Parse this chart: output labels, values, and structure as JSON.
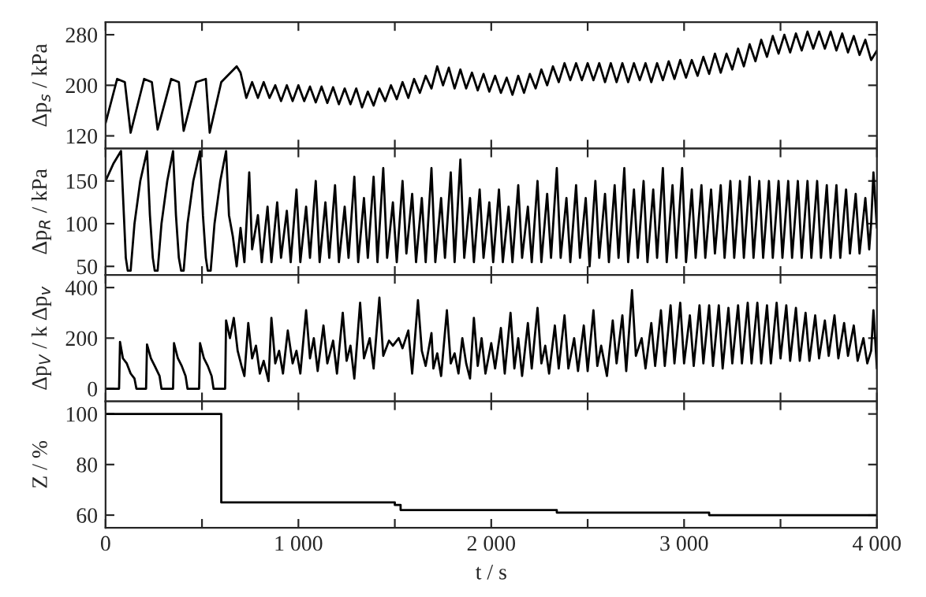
{
  "chart_data": [
    {
      "type": "line",
      "ylabel": "Δp$_{s}$ / kPa",
      "tick_labels": "y",
      "grid": false,
      "xlim": [
        0,
        4000
      ],
      "ylim": [
        100,
        300
      ],
      "yticks": [
        120,
        200,
        280
      ],
      "xticks": [
        0,
        500,
        1000,
        1500,
        2000,
        2500,
        3000,
        3500,
        4000
      ],
      "series": [
        {
          "color": "#000000",
          "x": [
            0,
            60,
            100,
            130,
            200,
            240,
            270,
            340,
            380,
            405,
            470,
            520,
            540,
            600,
            680,
            700,
            730,
            760,
            790,
            820,
            850,
            880,
            910,
            940,
            970,
            1000,
            1030,
            1060,
            1090,
            1120,
            1150,
            1180,
            1210,
            1240,
            1270,
            1300,
            1330,
            1360,
            1390,
            1420,
            1450,
            1480,
            1510,
            1540,
            1570,
            1600,
            1630,
            1660,
            1690,
            1720,
            1750,
            1780,
            1810,
            1840,
            1870,
            1900,
            1930,
            1960,
            1990,
            2020,
            2050,
            2080,
            2110,
            2140,
            2170,
            2200,
            2230,
            2260,
            2290,
            2320,
            2350,
            2380,
            2410,
            2440,
            2470,
            2500,
            2530,
            2560,
            2590,
            2620,
            2650,
            2680,
            2710,
            2740,
            2770,
            2800,
            2830,
            2860,
            2890,
            2920,
            2950,
            2980,
            3010,
            3040,
            3070,
            3100,
            3130,
            3160,
            3190,
            3220,
            3250,
            3280,
            3310,
            3340,
            3370,
            3400,
            3430,
            3460,
            3490,
            3520,
            3550,
            3580,
            3610,
            3640,
            3670,
            3700,
            3730,
            3760,
            3790,
            3820,
            3850,
            3880,
            3910,
            3940,
            3970,
            4000
          ],
          "values": [
            140,
            210,
            205,
            125,
            210,
            205,
            130,
            210,
            205,
            128,
            205,
            210,
            125,
            205,
            230,
            220,
            180,
            205,
            180,
            205,
            180,
            200,
            175,
            200,
            175,
            200,
            175,
            198,
            173,
            198,
            172,
            197,
            170,
            195,
            170,
            195,
            165,
            190,
            168,
            195,
            175,
            200,
            178,
            205,
            180,
            210,
            188,
            215,
            195,
            230,
            200,
            228,
            195,
            225,
            195,
            220,
            192,
            218,
            190,
            215,
            188,
            212,
            185,
            215,
            188,
            218,
            195,
            225,
            200,
            230,
            205,
            235,
            208,
            235,
            208,
            235,
            208,
            235,
            205,
            235,
            205,
            235,
            205,
            235,
            208,
            235,
            205,
            235,
            208,
            238,
            210,
            240,
            212,
            240,
            215,
            245,
            218,
            250,
            220,
            250,
            225,
            258,
            230,
            265,
            238,
            272,
            245,
            278,
            250,
            280,
            252,
            282,
            255,
            285,
            258,
            285,
            258,
            285,
            255,
            282,
            252,
            278,
            248,
            272,
            240,
            255
          ]
        }
      ]
    },
    {
      "type": "line",
      "ylabel": "Δp$_{R}$ / kPa",
      "tick_labels": "y",
      "grid": false,
      "xlim": [
        0,
        4000
      ],
      "ylim": [
        40,
        188
      ],
      "yticks": [
        50,
        100,
        150
      ],
      "xticks": [
        0,
        500,
        1000,
        1500,
        2000,
        2500,
        3000,
        3500,
        4000
      ],
      "series": [
        {
          "color": "#000000",
          "x": [
            0,
            40,
            80,
            95,
            105,
            115,
            130,
            150,
            180,
            215,
            230,
            245,
            255,
            270,
            290,
            320,
            350,
            365,
            380,
            392,
            405,
            425,
            455,
            490,
            505,
            520,
            530,
            545,
            565,
            595,
            625,
            640,
            660,
            680,
            700,
            720,
            745,
            760,
            790,
            810,
            840,
            860,
            890,
            910,
            940,
            960,
            990,
            1010,
            1040,
            1060,
            1090,
            1110,
            1140,
            1160,
            1190,
            1210,
            1240,
            1260,
            1290,
            1310,
            1340,
            1360,
            1390,
            1410,
            1440,
            1460,
            1490,
            1510,
            1540,
            1560,
            1590,
            1610,
            1640,
            1660,
            1690,
            1710,
            1740,
            1760,
            1790,
            1810,
            1840,
            1860,
            1890,
            1910,
            1940,
            1960,
            1990,
            2010,
            2040,
            2060,
            2090,
            2110,
            2140,
            2160,
            2190,
            2210,
            2240,
            2260,
            2290,
            2310,
            2340,
            2360,
            2390,
            2410,
            2440,
            2460,
            2490,
            2510,
            2540,
            2560,
            2590,
            2610,
            2640,
            2660,
            2690,
            2710,
            2740,
            2760,
            2790,
            2810,
            2840,
            2860,
            2890,
            2910,
            2940,
            2960,
            2990,
            3010,
            3040,
            3060,
            3090,
            3110,
            3140,
            3160,
            3190,
            3210,
            3240,
            3260,
            3290,
            3310,
            3340,
            3360,
            3390,
            3410,
            3440,
            3460,
            3490,
            3510,
            3540,
            3560,
            3590,
            3610,
            3640,
            3660,
            3690,
            3710,
            3740,
            3760,
            3790,
            3810,
            3840,
            3860,
            3890,
            3910,
            3940,
            3960,
            3970,
            3982,
            4000
          ],
          "values": [
            150,
            170,
            185,
            110,
            60,
            45,
            45,
            100,
            150,
            185,
            110,
            60,
            45,
            45,
            100,
            150,
            185,
            110,
            60,
            45,
            45,
            100,
            150,
            185,
            110,
            60,
            45,
            45,
            100,
            150,
            185,
            110,
            85,
            50,
            95,
            55,
            160,
            70,
            110,
            55,
            120,
            55,
            125,
            60,
            115,
            55,
            140,
            55,
            120,
            60,
            150,
            55,
            125,
            60,
            145,
            55,
            120,
            60,
            155,
            55,
            130,
            60,
            155,
            55,
            165,
            60,
            125,
            55,
            150,
            65,
            135,
            55,
            130,
            55,
            165,
            55,
            130,
            60,
            160,
            55,
            175,
            60,
            130,
            55,
            140,
            60,
            125,
            55,
            140,
            55,
            120,
            55,
            145,
            60,
            120,
            55,
            150,
            55,
            135,
            60,
            165,
            60,
            130,
            55,
            145,
            60,
            130,
            50,
            150,
            60,
            135,
            55,
            145,
            60,
            165,
            55,
            140,
            60,
            150,
            55,
            140,
            60,
            165,
            55,
            145,
            60,
            165,
            55,
            140,
            60,
            145,
            60,
            140,
            65,
            145,
            60,
            150,
            60,
            150,
            60,
            155,
            60,
            150,
            60,
            150,
            60,
            150,
            60,
            150,
            60,
            150,
            60,
            150,
            60,
            150,
            60,
            145,
            60,
            145,
            60,
            140,
            65,
            135,
            65,
            130,
            70,
            100,
            160,
            95
          ]
        }
      ]
    },
    {
      "type": "line",
      "ylabel": "Δp$_{V}$ / k Δp$_{v}$",
      "tick_labels": "y",
      "grid": false,
      "xlim": [
        0,
        4000
      ],
      "ylim": [
        -50,
        450
      ],
      "yticks": [
        0,
        200,
        400
      ],
      "xticks": [
        0,
        500,
        1000,
        1500,
        2000,
        2500,
        3000,
        3500,
        4000
      ],
      "series": [
        {
          "color": "#000000",
          "x": [
            0,
            70,
            75,
            90,
            110,
            130,
            150,
            160,
            210,
            215,
            235,
            255,
            280,
            290,
            350,
            355,
            375,
            395,
            415,
            425,
            485,
            490,
            510,
            530,
            550,
            560,
            620,
            625,
            645,
            665,
            685,
            705,
            720,
            740,
            760,
            780,
            800,
            820,
            845,
            860,
            880,
            900,
            920,
            945,
            970,
            990,
            1010,
            1040,
            1060,
            1080,
            1100,
            1130,
            1150,
            1180,
            1200,
            1230,
            1250,
            1270,
            1290,
            1320,
            1340,
            1370,
            1390,
            1420,
            1440,
            1470,
            1490,
            1520,
            1540,
            1570,
            1590,
            1620,
            1640,
            1660,
            1690,
            1700,
            1720,
            1740,
            1770,
            1790,
            1810,
            1830,
            1850,
            1870,
            1890,
            1910,
            1930,
            1950,
            1970,
            2000,
            2020,
            2050,
            2070,
            2100,
            2120,
            2140,
            2160,
            2190,
            2210,
            2240,
            2260,
            2280,
            2300,
            2330,
            2350,
            2380,
            2400,
            2430,
            2450,
            2480,
            2500,
            2530,
            2550,
            2570,
            2600,
            2630,
            2650,
            2680,
            2700,
            2730,
            2750,
            2780,
            2800,
            2830,
            2850,
            2880,
            2900,
            2930,
            2950,
            2980,
            3000,
            3030,
            3050,
            3080,
            3100,
            3130,
            3150,
            3180,
            3200,
            3230,
            3250,
            3280,
            3300,
            3330,
            3350,
            3380,
            3400,
            3430,
            3450,
            3480,
            3500,
            3530,
            3550,
            3580,
            3600,
            3630,
            3650,
            3680,
            3700,
            3730,
            3750,
            3780,
            3800,
            3830,
            3850,
            3880,
            3900,
            3930,
            3950,
            3970,
            3982,
            4000
          ],
          "values": [
            0,
            0,
            185,
            120,
            100,
            60,
            40,
            0,
            0,
            175,
            120,
            90,
            50,
            0,
            0,
            180,
            120,
            90,
            50,
            0,
            0,
            180,
            120,
            90,
            50,
            0,
            0,
            270,
            200,
            280,
            150,
            90,
            50,
            260,
            120,
            170,
            60,
            110,
            30,
            280,
            100,
            150,
            60,
            230,
            100,
            150,
            60,
            310,
            120,
            200,
            70,
            250,
            100,
            190,
            60,
            300,
            110,
            170,
            40,
            340,
            120,
            200,
            80,
            360,
            130,
            190,
            170,
            200,
            160,
            230,
            60,
            350,
            150,
            90,
            220,
            80,
            140,
            50,
            310,
            100,
            140,
            60,
            200,
            100,
            40,
            280,
            90,
            200,
            60,
            180,
            80,
            240,
            60,
            300,
            80,
            200,
            50,
            260,
            80,
            320,
            100,
            170,
            60,
            250,
            80,
            290,
            80,
            200,
            70,
            250,
            70,
            310,
            90,
            170,
            50,
            270,
            100,
            290,
            70,
            390,
            130,
            200,
            80,
            260,
            90,
            310,
            90,
            330,
            100,
            340,
            100,
            290,
            90,
            330,
            100,
            330,
            90,
            330,
            80,
            320,
            100,
            330,
            100,
            340,
            100,
            340,
            100,
            330,
            100,
            340,
            120,
            330,
            110,
            320,
            110,
            300,
            110,
            290,
            120,
            270,
            130,
            290,
            120,
            260,
            130,
            250,
            110,
            200,
            100,
            150,
            310,
            80
          ]
        }
      ]
    },
    {
      "type": "step",
      "ylabel": "Z / %",
      "xlabel": "t / s",
      "grid": false,
      "xlim": [
        0,
        4000
      ],
      "ylim": [
        55,
        105
      ],
      "yticks": [
        60,
        80,
        100
      ],
      "xticks": [
        {
          "value": 0,
          "label": "0"
        },
        {
          "value": 500,
          "label": null
        },
        {
          "value": 1000,
          "label": "1 000"
        },
        {
          "value": 1500,
          "label": null
        },
        {
          "value": 2000,
          "label": "2 000"
        },
        {
          "value": 2500,
          "label": null
        },
        {
          "value": 3000,
          "label": "3 000"
        },
        {
          "value": 3500,
          "label": null
        },
        {
          "value": 4000,
          "label": "4 000"
        }
      ],
      "series": [
        {
          "color": "#000000",
          "x": [
            0,
            600,
            1500,
            1530,
            2340,
            3130,
            4000
          ],
          "values": [
            100,
            65,
            64,
            62,
            61,
            60,
            60
          ]
        }
      ]
    }
  ]
}
